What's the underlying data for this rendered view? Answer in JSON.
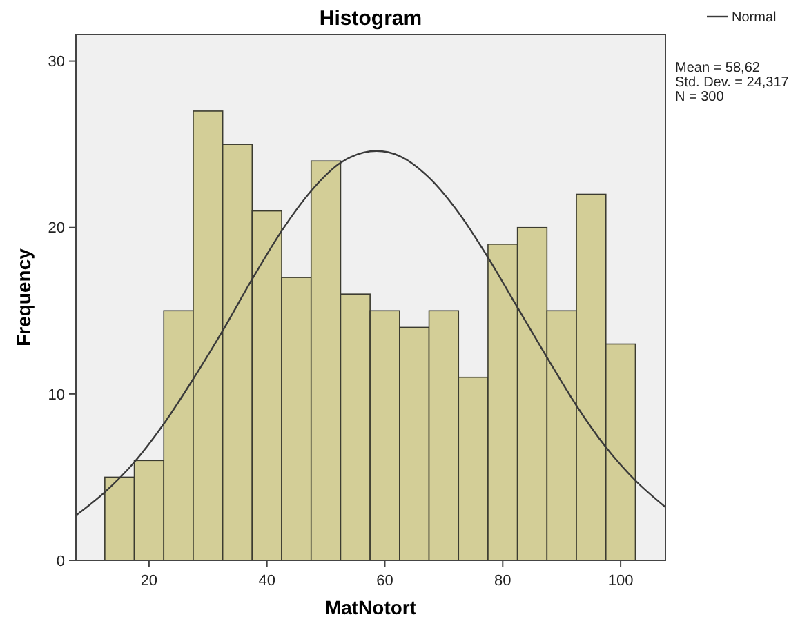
{
  "chart_data": {
    "type": "histogram",
    "title": "Histogram",
    "xlabel": "MatNotort",
    "ylabel": "Frequency",
    "bins": [
      12.5,
      17.5,
      22.5,
      27.5,
      32.5,
      37.5,
      42.5,
      47.5,
      52.5,
      57.5,
      62.5,
      67.5,
      72.5,
      77.5,
      82.5,
      87.5,
      92.5,
      97.5,
      102.5
    ],
    "series": [
      {
        "color": "#d3ce97",
        "values": [
          5,
          6,
          15,
          27,
          25,
          21,
          17,
          24,
          16,
          15,
          14,
          15,
          11,
          19,
          20,
          15,
          22,
          13
        ]
      },
      {
        "type": "line",
        "name": "Normal",
        "color": "#3a3a3a",
        "x": [
          7.6,
          12.5,
          17.5,
          22.5,
          27.5,
          32.5,
          37.5,
          42.5,
          47.5,
          52.5,
          58.6,
          62.5,
          67.5,
          72.5,
          77.5,
          82.5,
          87.5,
          92.5,
          97.5,
          102.5,
          107.6
        ],
        "values": [
          2.7,
          4.1,
          5.9,
          8.2,
          10.9,
          13.8,
          16.9,
          19.8,
          22.2,
          23.9,
          24.6,
          24.3,
          23.0,
          20.9,
          18.2,
          15.2,
          12.2,
          9.3,
          6.8,
          4.8,
          3.2
        ]
      }
    ],
    "xlim": [
      7.6,
      107.6
    ],
    "ylim": [
      0,
      31.6
    ],
    "xticks": [
      20,
      40,
      60,
      80,
      100
    ],
    "yticks": [
      0,
      10,
      20,
      30
    ],
    "legend": "top right",
    "grid": false,
    "annotations": [
      "Mean = 58,62",
      "Std. Dev. = 24,317",
      "N = 300"
    ]
  }
}
